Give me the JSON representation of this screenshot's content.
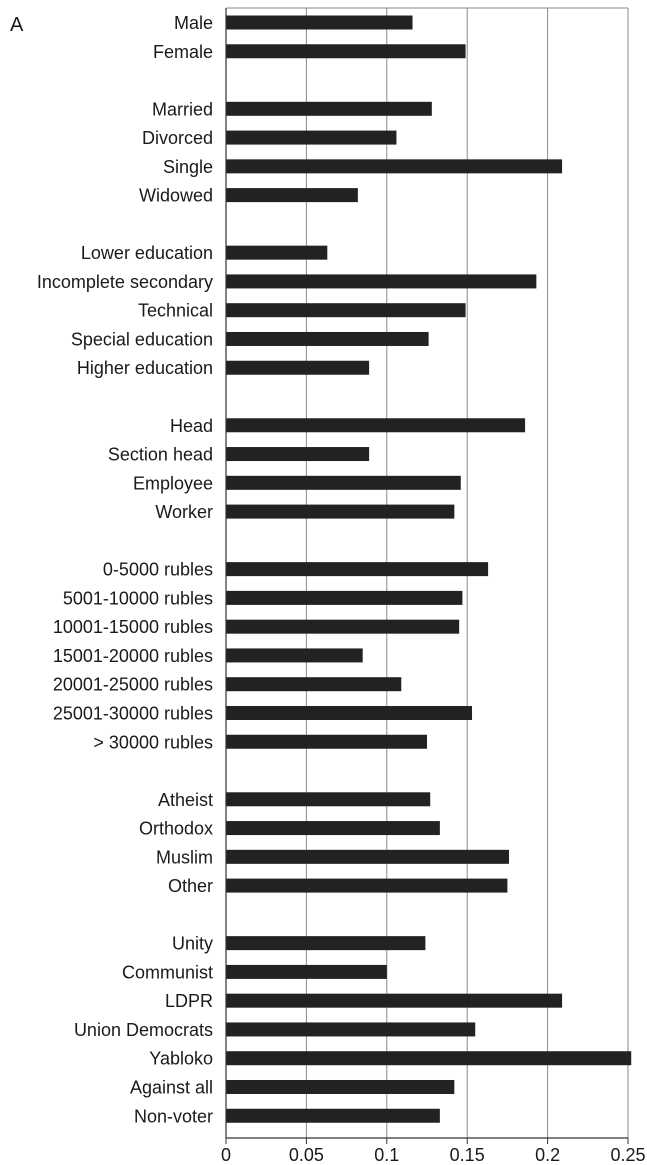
{
  "panel_label": "A",
  "chart_data": {
    "type": "bar",
    "orientation": "horizontal",
    "title": "",
    "xlabel": "",
    "ylabel": "",
    "xlim": [
      0,
      0.25
    ],
    "xticks": [
      0,
      0.05,
      0.1,
      0.15,
      0.2,
      0.25
    ],
    "xtick_labels": [
      "0",
      "0.05",
      "0.1",
      "0.15",
      "0.2",
      "0.25"
    ],
    "grid": "vertical",
    "bar_color": "#222222",
    "groups": [
      {
        "categories": [
          "Male",
          "Female"
        ],
        "values": [
          0.116,
          0.149
        ]
      },
      {
        "categories": [
          "Married",
          "Divorced",
          "Single",
          "Widowed"
        ],
        "values": [
          0.128,
          0.106,
          0.209,
          0.082
        ]
      },
      {
        "categories": [
          "Lower education",
          "Incomplete secondary",
          "Technical",
          "Special education",
          "Higher education"
        ],
        "values": [
          0.063,
          0.193,
          0.149,
          0.126,
          0.089
        ]
      },
      {
        "categories": [
          "Head",
          "Section head",
          "Employee",
          "Worker"
        ],
        "values": [
          0.186,
          0.089,
          0.146,
          0.142
        ]
      },
      {
        "categories": [
          "0-5000 rubles",
          "5001-10000 rubles",
          "10001-15000 rubles",
          "15001-20000 rubles",
          "20001-25000 rubles",
          "25001-30000 rubles",
          "> 30000  rubles"
        ],
        "values": [
          0.163,
          0.147,
          0.145,
          0.085,
          0.109,
          0.153,
          0.125
        ]
      },
      {
        "categories": [
          "Atheist",
          "Orthodox",
          "Muslim",
          "Other"
        ],
        "values": [
          0.127,
          0.133,
          0.176,
          0.175
        ]
      },
      {
        "categories": [
          "Unity",
          "Communist",
          "LDPR",
          "Union Democrats",
          "Yabloko",
          "Against all",
          "Non-voter"
        ],
        "values": [
          0.124,
          0.1,
          0.209,
          0.155,
          0.252,
          0.142,
          0.133
        ]
      }
    ]
  }
}
